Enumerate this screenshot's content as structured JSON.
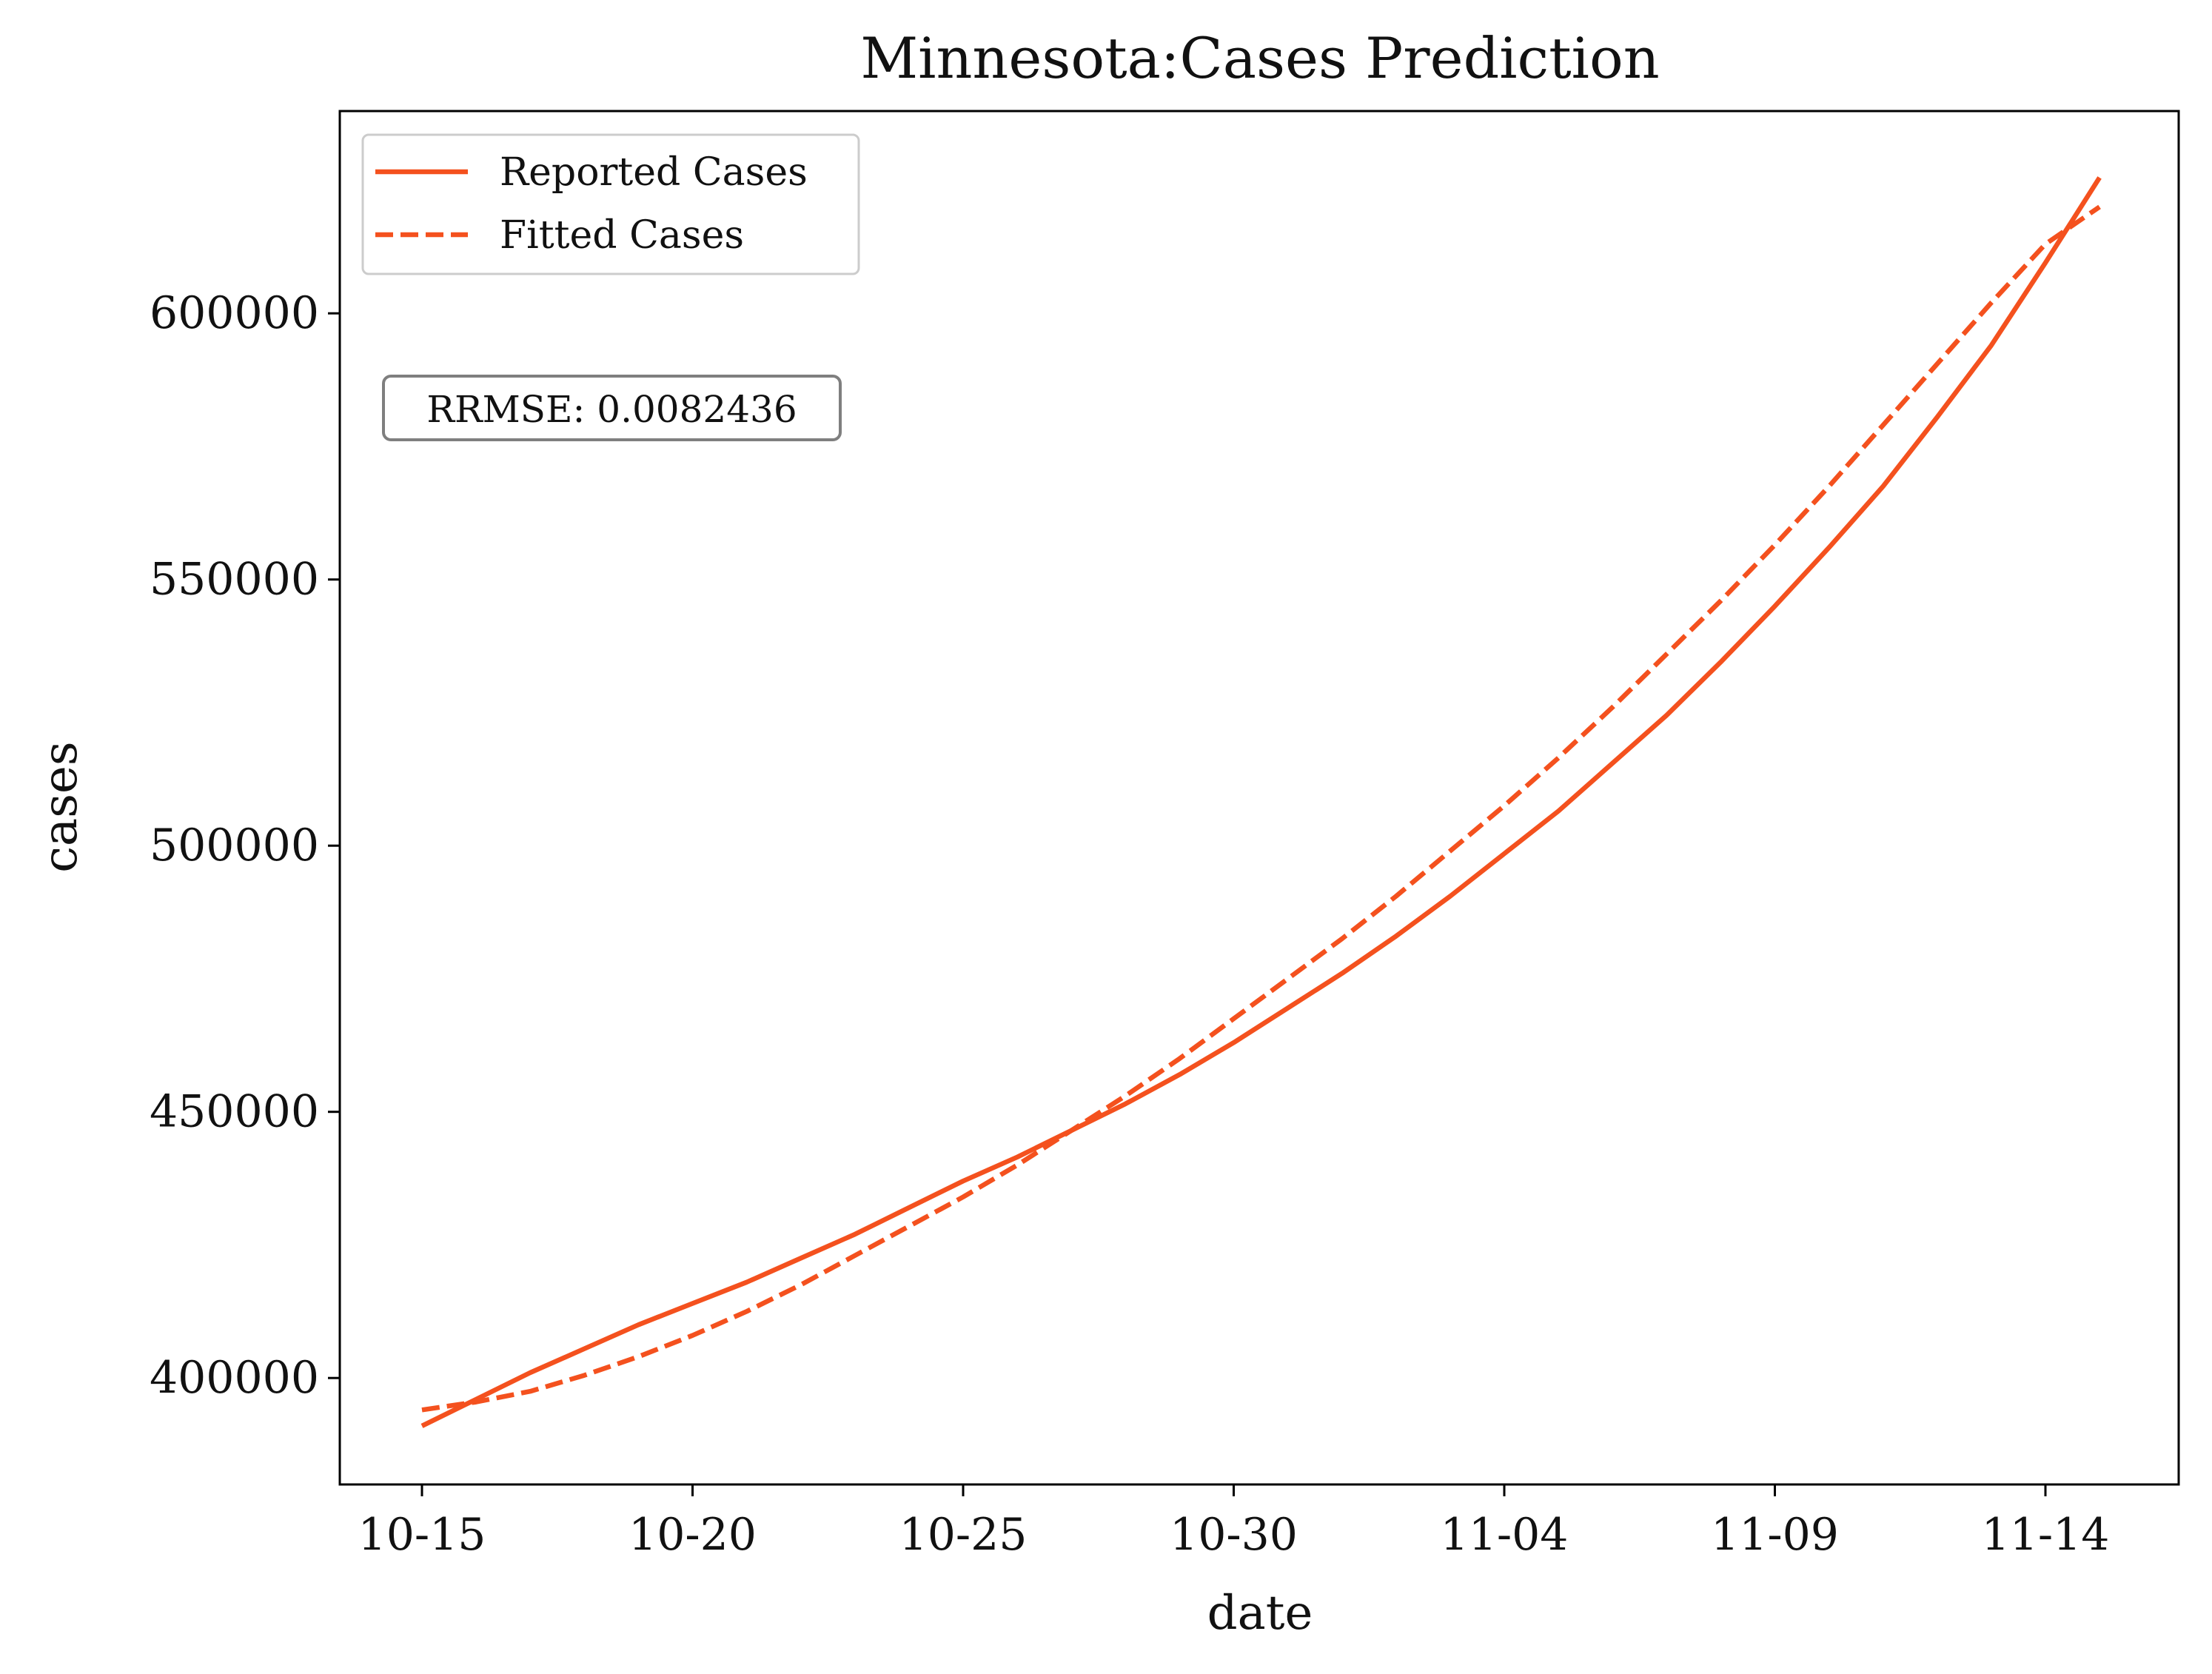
{
  "chart_data": {
    "type": "line",
    "title": "Minnesota:Cases Prediction",
    "xlabel": "date",
    "ylabel": "cases",
    "x_ticks": [
      "10-15",
      "10-20",
      "10-25",
      "10-30",
      "11-04",
      "11-09",
      "11-14"
    ],
    "y_ticks": [
      400000,
      450000,
      500000,
      550000,
      600000
    ],
    "ylim": [
      380000,
      638000
    ],
    "x_dates": [
      "10-15",
      "10-16",
      "10-17",
      "10-18",
      "10-19",
      "10-20",
      "10-21",
      "10-22",
      "10-23",
      "10-24",
      "10-25",
      "10-26",
      "10-27",
      "10-28",
      "10-29",
      "10-30",
      "10-31",
      "11-01",
      "11-02",
      "11-03",
      "11-04",
      "11-05",
      "11-06",
      "11-07",
      "11-08",
      "11-09",
      "11-10",
      "11-11",
      "11-12",
      "11-13",
      "11-14",
      "11-15"
    ],
    "series": [
      {
        "name": "Reported Cases",
        "style": "solid",
        "color": "#f4511e",
        "values": [
          391000,
          396000,
          401000,
          405500,
          410000,
          414000,
          418000,
          422500,
          427000,
          432000,
          437000,
          441500,
          446500,
          451500,
          457000,
          463000,
          469500,
          476000,
          483000,
          490500,
          498500,
          506500,
          515500,
          524500,
          534500,
          545000,
          556000,
          567500,
          580500,
          594000,
          609500,
          625500
        ]
      },
      {
        "name": "Fitted Cases",
        "style": "dashed",
        "color": "#f4511e",
        "values": [
          394000,
          395500,
          397500,
          400500,
          404000,
          408000,
          412500,
          417500,
          423000,
          428500,
          434000,
          440000,
          446500,
          453000,
          460000,
          467500,
          475000,
          482500,
          490500,
          499000,
          507500,
          516500,
          526000,
          536000,
          546000,
          556500,
          567500,
          579000,
          590500,
          602000,
          613000,
          620000
        ]
      }
    ],
    "legend": {
      "placement": "upper-left",
      "entries": [
        "Reported Cases",
        "Fitted Cases"
      ]
    },
    "annotation": "RRMSE: 0.0082436",
    "grid": false
  }
}
